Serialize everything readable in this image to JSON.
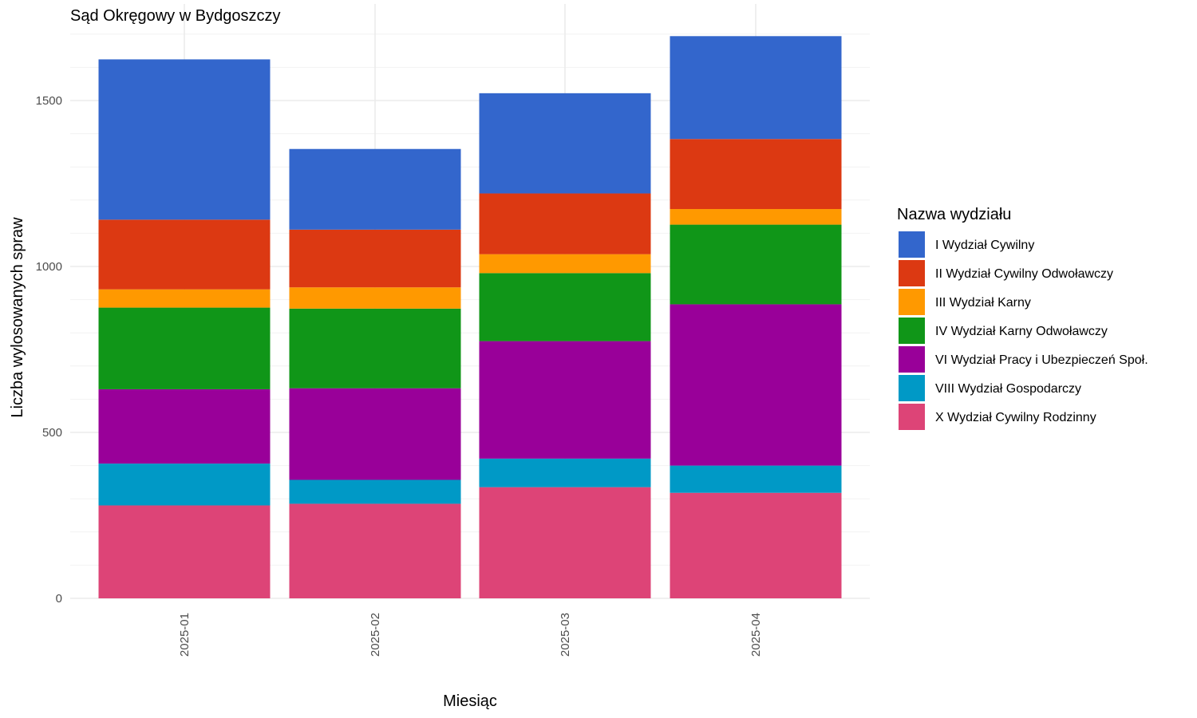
{
  "chart_data": {
    "type": "bar",
    "stacked": true,
    "title": "Sąd Okręgowy w Bydgoszczy",
    "xlabel": "Miesiąc",
    "ylabel": "Liczba wylosowanych spraw",
    "ylim": [
      0,
      1700
    ],
    "yticks": [
      0,
      500,
      1000,
      1500
    ],
    "grid": true,
    "legend_position": "right",
    "legend_title": "Nazwa wydziału",
    "categories": [
      "2025-01",
      "2025-02",
      "2025-03",
      "2025-04"
    ],
    "series": [
      {
        "name": "X Wydział Cywilny Rodzinny",
        "color": "#DD4477",
        "values": [
          280,
          285,
          335,
          318
        ]
      },
      {
        "name": "VIII Wydział Gospodarczy",
        "color": "#0099C6",
        "values": [
          126,
          72,
          86,
          82
        ]
      },
      {
        "name": "VI Wydział Pracy i Ubezpieczeń Społ.",
        "color": "#990099",
        "values": [
          224,
          276,
          354,
          486
        ]
      },
      {
        "name": "IV Wydział Karny Odwoławczy",
        "color": "#109618",
        "values": [
          246,
          240,
          205,
          240
        ]
      },
      {
        "name": "III Wydział Karny",
        "color": "#FF9900",
        "values": [
          55,
          64,
          57,
          47
        ]
      },
      {
        "name": "II Wydział Cywilny Odwoławczy",
        "color": "#DC3912",
        "values": [
          210,
          174,
          183,
          211
        ]
      },
      {
        "name": "I Wydział Cywilny",
        "color": "#3366CC",
        "values": [
          483,
          243,
          302,
          310
        ]
      }
    ],
    "legend_order": [
      "I Wydział Cywilny",
      "II Wydział Cywilny Odwoławczy",
      "III Wydział Karny",
      "IV Wydział Karny Odwoławczy",
      "VI Wydział Pracy i Ubezpieczeń Społ.",
      "VIII Wydział Gospodarczy",
      "X Wydział Cywilny Rodzinny"
    ]
  }
}
